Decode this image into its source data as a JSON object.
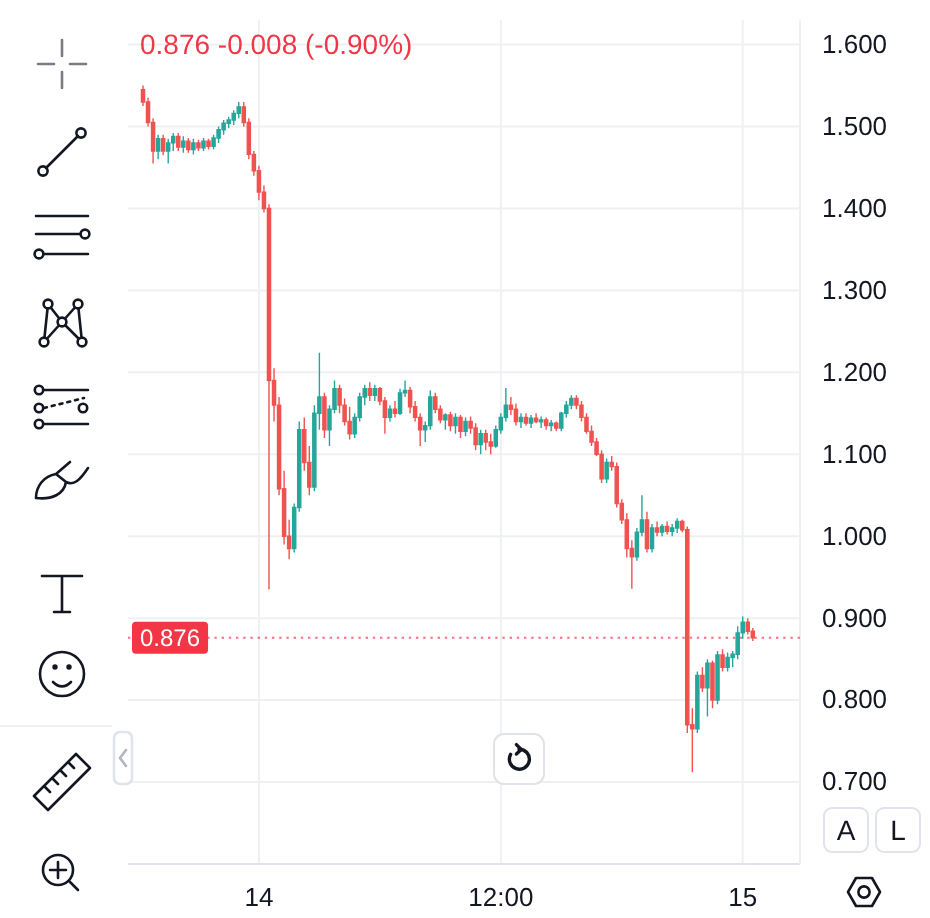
{
  "chart_data": {
    "type": "candlestick",
    "subtitle": "0.876 -0.008 (-0.90%)",
    "annotations": [
      "A",
      "L"
    ],
    "categories": [
      null,
      null,
      null,
      null,
      null,
      null,
      null,
      null,
      null,
      null,
      null,
      null,
      null,
      null,
      null,
      null,
      null,
      null,
      null,
      null,
      null,
      null,
      null,
      "14",
      null,
      null,
      null,
      null,
      null,
      null,
      null,
      null,
      null,
      null,
      null,
      null,
      null,
      null,
      null,
      null,
      null,
      null,
      null,
      null,
      null,
      null,
      null,
      null,
      null,
      null,
      null,
      null,
      null,
      null,
      null,
      null,
      null,
      null,
      null,
      null,
      null,
      null,
      null,
      null,
      null,
      null,
      null,
      null,
      null,
      null,
      null,
      "12:00",
      null,
      null,
      null,
      null,
      null,
      null,
      null,
      null,
      null,
      null,
      null,
      null,
      null,
      null,
      null,
      null,
      null,
      null,
      null,
      null,
      null,
      null,
      null,
      null,
      null,
      null,
      null,
      null,
      null,
      null,
      null,
      null,
      null,
      null,
      null,
      null,
      null,
      null,
      null,
      null,
      null,
      null,
      null,
      null,
      null,
      null,
      null,
      "15",
      null,
      null
    ],
    "ohlc": [
      [
        1.545,
        1.55,
        1.525,
        1.53
      ],
      [
        1.53,
        1.535,
        1.5,
        1.505
      ],
      [
        1.505,
        1.51,
        1.455,
        1.47
      ],
      [
        1.47,
        1.49,
        1.46,
        1.485
      ],
      [
        1.485,
        1.49,
        1.465,
        1.47
      ],
      [
        1.47,
        1.485,
        1.455,
        1.48
      ],
      [
        1.48,
        1.492,
        1.47,
        1.488
      ],
      [
        1.488,
        1.492,
        1.47,
        1.475
      ],
      [
        1.475,
        1.488,
        1.468,
        1.482
      ],
      [
        1.482,
        1.486,
        1.468,
        1.472
      ],
      [
        1.472,
        1.485,
        1.466,
        1.48
      ],
      [
        1.48,
        1.484,
        1.47,
        1.474
      ],
      [
        1.474,
        1.486,
        1.47,
        1.482
      ],
      [
        1.482,
        1.485,
        1.472,
        1.476
      ],
      [
        1.476,
        1.49,
        1.472,
        1.486
      ],
      [
        1.486,
        1.5,
        1.48,
        1.496
      ],
      [
        1.496,
        1.508,
        1.49,
        1.504
      ],
      [
        1.504,
        1.512,
        1.498,
        1.508
      ],
      [
        1.508,
        1.52,
        1.502,
        1.516
      ],
      [
        1.516,
        1.53,
        1.51,
        1.524
      ],
      [
        1.524,
        1.53,
        1.5,
        1.505
      ],
      [
        1.505,
        1.51,
        1.46,
        1.466
      ],
      [
        1.466,
        1.47,
        1.44,
        1.446
      ],
      [
        1.446,
        1.452,
        1.41,
        1.42
      ],
      [
        1.42,
        1.428,
        1.395,
        1.4
      ],
      [
        1.4,
        1.405,
        0.935,
        1.19
      ],
      [
        1.19,
        1.205,
        1.14,
        1.16
      ],
      [
        1.16,
        1.17,
        1.05,
        1.058
      ],
      [
        1.058,
        1.08,
        0.99,
        1.0
      ],
      [
        1.0,
        1.02,
        0.972,
        0.985
      ],
      [
        0.985,
        1.04,
        0.98,
        1.035
      ],
      [
        1.035,
        1.14,
        1.03,
        1.13
      ],
      [
        1.13,
        1.145,
        1.08,
        1.09
      ],
      [
        1.09,
        1.11,
        1.05,
        1.06
      ],
      [
        1.06,
        1.16,
        1.055,
        1.15
      ],
      [
        1.15,
        1.224,
        1.13,
        1.17
      ],
      [
        1.17,
        1.175,
        1.12,
        1.13
      ],
      [
        1.13,
        1.16,
        1.11,
        1.155
      ],
      [
        1.155,
        1.19,
        1.15,
        1.18
      ],
      [
        1.18,
        1.185,
        1.15,
        1.16
      ],
      [
        1.16,
        1.168,
        1.135,
        1.14
      ],
      [
        1.14,
        1.158,
        1.118,
        1.125
      ],
      [
        1.125,
        1.15,
        1.12,
        1.145
      ],
      [
        1.145,
        1.175,
        1.14,
        1.17
      ],
      [
        1.17,
        1.185,
        1.16,
        1.18
      ],
      [
        1.18,
        1.188,
        1.165,
        1.172
      ],
      [
        1.172,
        1.185,
        1.165,
        1.18
      ],
      [
        1.18,
        1.182,
        1.16,
        1.165
      ],
      [
        1.165,
        1.17,
        1.125,
        1.145
      ],
      [
        1.145,
        1.16,
        1.14,
        1.155
      ],
      [
        1.155,
        1.165,
        1.145,
        1.15
      ],
      [
        1.15,
        1.18,
        1.148,
        1.175
      ],
      [
        1.175,
        1.19,
        1.17,
        1.178
      ],
      [
        1.178,
        1.182,
        1.15,
        1.158
      ],
      [
        1.158,
        1.165,
        1.14,
        1.145
      ],
      [
        1.145,
        1.15,
        1.11,
        1.13
      ],
      [
        1.13,
        1.14,
        1.115,
        1.135
      ],
      [
        1.135,
        1.178,
        1.13,
        1.17
      ],
      [
        1.17,
        1.175,
        1.15,
        1.155
      ],
      [
        1.155,
        1.16,
        1.138,
        1.142
      ],
      [
        1.142,
        1.15,
        1.13,
        1.148
      ],
      [
        1.148,
        1.152,
        1.128,
        1.135
      ],
      [
        1.135,
        1.15,
        1.125,
        1.145
      ],
      [
        1.145,
        1.148,
        1.12,
        1.128
      ],
      [
        1.128,
        1.145,
        1.122,
        1.14
      ],
      [
        1.14,
        1.146,
        1.125,
        1.132
      ],
      [
        1.132,
        1.138,
        1.105,
        1.112
      ],
      [
        1.112,
        1.13,
        1.1,
        1.125
      ],
      [
        1.125,
        1.13,
        1.105,
        1.115
      ],
      [
        1.115,
        1.125,
        1.1,
        1.11
      ],
      [
        1.11,
        1.135,
        1.108,
        1.13
      ],
      [
        1.13,
        1.15,
        1.125,
        1.145
      ],
      [
        1.145,
        1.181,
        1.14,
        1.16
      ],
      [
        1.16,
        1.17,
        1.148,
        1.155
      ],
      [
        1.155,
        1.162,
        1.135,
        1.14
      ],
      [
        1.14,
        1.15,
        1.132,
        1.145
      ],
      [
        1.145,
        1.15,
        1.135,
        1.138
      ],
      [
        1.138,
        1.148,
        1.132,
        1.144
      ],
      [
        1.144,
        1.15,
        1.138,
        1.14
      ],
      [
        1.14,
        1.146,
        1.132,
        1.142
      ],
      [
        1.142,
        1.145,
        1.13,
        1.135
      ],
      [
        1.135,
        1.142,
        1.128,
        1.138
      ],
      [
        1.138,
        1.14,
        1.128,
        1.132
      ],
      [
        1.132,
        1.152,
        1.128,
        1.15
      ],
      [
        1.15,
        1.165,
        1.145,
        1.16
      ],
      [
        1.16,
        1.172,
        1.155,
        1.168
      ],
      [
        1.168,
        1.172,
        1.155,
        1.16
      ],
      [
        1.16,
        1.165,
        1.14,
        1.145
      ],
      [
        1.145,
        1.15,
        1.125,
        1.128
      ],
      [
        1.128,
        1.135,
        1.11,
        1.115
      ],
      [
        1.115,
        1.12,
        1.098,
        1.1
      ],
      [
        1.1,
        1.105,
        1.065,
        1.07
      ],
      [
        1.07,
        1.095,
        1.065,
        1.09
      ],
      [
        1.09,
        1.098,
        1.08,
        1.085
      ],
      [
        1.085,
        1.09,
        1.035,
        1.04
      ],
      [
        1.04,
        1.045,
        1.015,
        1.02
      ],
      [
        1.02,
        1.028,
        0.974,
        0.985
      ],
      [
        0.985,
        0.995,
        0.936,
        0.975
      ],
      [
        0.975,
        1.01,
        0.97,
        1.005
      ],
      [
        1.005,
        1.05,
        1.0,
        1.02
      ],
      [
        1.02,
        1.03,
        0.98,
        0.985
      ],
      [
        0.985,
        1.015,
        0.98,
        1.01
      ],
      [
        1.01,
        1.018,
        1.0,
        1.005
      ],
      [
        1.005,
        1.015,
        1.0,
        1.012
      ],
      [
        1.012,
        1.018,
        1.002,
        1.006
      ],
      [
        1.006,
        1.015,
        1.0,
        1.01
      ],
      [
        1.01,
        1.022,
        1.004,
        1.018
      ],
      [
        1.018,
        1.02,
        1.005,
        1.008
      ],
      [
        1.008,
        1.012,
        0.76,
        0.77
      ],
      [
        0.77,
        0.79,
        0.712,
        0.765
      ],
      [
        0.765,
        0.835,
        0.76,
        0.83
      ],
      [
        0.83,
        0.84,
        0.81,
        0.815
      ],
      [
        0.815,
        0.85,
        0.78,
        0.845
      ],
      [
        0.845,
        0.848,
        0.79,
        0.8
      ],
      [
        0.8,
        0.86,
        0.795,
        0.855
      ],
      [
        0.855,
        0.862,
        0.835,
        0.84
      ],
      [
        0.84,
        0.858,
        0.835,
        0.852
      ],
      [
        0.852,
        0.86,
        0.84,
        0.856
      ],
      [
        0.856,
        0.89,
        0.85,
        0.882
      ],
      [
        0.882,
        0.902,
        0.875,
        0.895
      ],
      [
        0.895,
        0.9,
        0.88,
        0.884
      ],
      [
        0.884,
        0.888,
        0.872,
        0.876
      ]
    ],
    "colors": [
      "#ef5350",
      "#ef5350",
      "#ef5350",
      "#26a69a",
      "#ef5350",
      "#26a69a",
      "#26a69a",
      "#ef5350",
      "#26a69a",
      "#ef5350",
      "#26a69a",
      "#ef5350",
      "#26a69a",
      "#ef5350",
      "#26a69a",
      "#26a69a",
      "#26a69a",
      "#26a69a",
      "#26a69a",
      "#26a69a",
      "#ef5350",
      "#ef5350",
      "#ef5350",
      "#ef5350",
      "#ef5350",
      "#ef5350",
      "#ef5350",
      "#ef5350",
      "#ef5350",
      "#ef5350",
      "#26a69a",
      "#26a69a",
      "#ef5350",
      "#ef5350",
      "#26a69a",
      "#26a69a",
      "#ef5350",
      "#26a69a",
      "#26a69a",
      "#ef5350",
      "#ef5350",
      "#ef5350",
      "#26a69a",
      "#26a69a",
      "#26a69a",
      "#ef5350",
      "#26a69a",
      "#ef5350",
      "#ef5350",
      "#26a69a",
      "#ef5350",
      "#26a69a",
      "#26a69a",
      "#ef5350",
      "#ef5350",
      "#ef5350",
      "#26a69a",
      "#26a69a",
      "#ef5350",
      "#ef5350",
      "#26a69a",
      "#ef5350",
      "#26a69a",
      "#ef5350",
      "#26a69a",
      "#ef5350",
      "#ef5350",
      "#26a69a",
      "#ef5350",
      "#ef5350",
      "#26a69a",
      "#26a69a",
      "#26a69a",
      "#ef5350",
      "#ef5350",
      "#26a69a",
      "#ef5350",
      "#26a69a",
      "#ef5350",
      "#26a69a",
      "#ef5350",
      "#26a69a",
      "#ef5350",
      "#26a69a",
      "#26a69a",
      "#26a69a",
      "#ef5350",
      "#ef5350",
      "#ef5350",
      "#ef5350",
      "#ef5350",
      "#ef5350",
      "#26a69a",
      "#ef5350",
      "#ef5350",
      "#ef5350",
      "#ef5350",
      "#ef5350",
      "#26a69a",
      "#26a69a",
      "#ef5350",
      "#26a69a",
      "#ef5350",
      "#26a69a",
      "#ef5350",
      "#26a69a",
      "#26a69a",
      "#ef5350",
      "#ef5350",
      "#ef5350",
      "#26a69a",
      "#ef5350",
      "#26a69a",
      "#ef5350",
      "#26a69a",
      "#ef5350",
      "#26a69a",
      "#26a69a",
      "#26a69a",
      "#26a69a",
      "#ef5350",
      "#ef5350"
    ],
    "ylim": [
      0.6,
      1.63
    ],
    "yticks": [
      {
        "value": 0.7,
        "label": "0.700"
      },
      {
        "value": 0.8,
        "label": "0.800"
      },
      {
        "value": 0.9,
        "label": "0.900"
      },
      {
        "value": 1.0,
        "label": "1.000"
      },
      {
        "value": 1.1,
        "label": "1.100"
      },
      {
        "value": 1.2,
        "label": "1.200"
      },
      {
        "value": 1.3,
        "label": "1.300"
      },
      {
        "value": 1.4,
        "label": "1.400"
      },
      {
        "value": 1.5,
        "label": "1.500"
      },
      {
        "value": 1.6,
        "label": "1.600"
      }
    ],
    "grid": true,
    "ref_lines": [
      {
        "axis": "y",
        "value": 0.876,
        "label": "0.876",
        "color": "#f23645",
        "line_style": "dotted"
      }
    ]
  }
}
